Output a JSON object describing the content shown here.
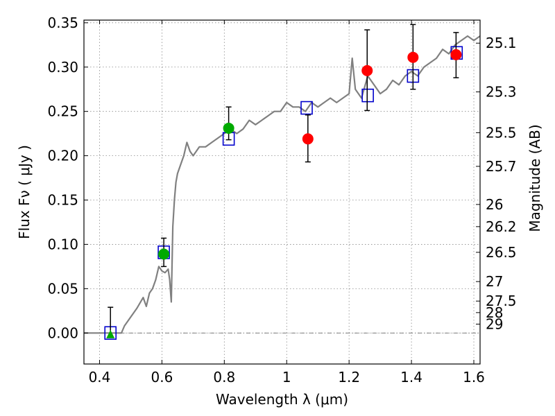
{
  "chart_data": {
    "type": "scatter",
    "xlabel": "Wavelength  λ (μm)",
    "ylabel": "Flux  Fν  ( μJy )",
    "ylabel_right": "Magnitude (AB)",
    "xlim": [
      0.35,
      1.62
    ],
    "ylim": [
      -0.035,
      0.353
    ],
    "grid": true,
    "x_ticks": [
      0.4,
      0.6,
      0.8,
      1.0,
      1.2,
      1.4,
      1.6
    ],
    "x_tick_labels": [
      "0.4",
      "0.6",
      "0.8",
      "1",
      "1.2",
      "1.4",
      "1.6"
    ],
    "y_ticks": [
      0.0,
      0.05,
      0.1,
      0.15,
      0.2,
      0.25,
      0.3,
      0.35
    ],
    "y_tick_labels": [
      "0.00",
      "0.05",
      "0.10",
      "0.15",
      "0.20",
      "0.25",
      "0.30",
      "0.35"
    ],
    "right_ticks": [
      {
        "label": "25.1",
        "flux": 0.327
      },
      {
        "label": "25.3",
        "flux": 0.272
      },
      {
        "label": "25.5",
        "flux": 0.226
      },
      {
        "label": "25.7",
        "flux": 0.188
      },
      {
        "label": "26",
        "flux": 0.145
      },
      {
        "label": "26.2",
        "flux": 0.12
      },
      {
        "label": "26.5",
        "flux": 0.091
      },
      {
        "label": "27",
        "flux": 0.058
      },
      {
        "label": "27.5",
        "flux": 0.036
      },
      {
        "label": "28",
        "flux": 0.023
      },
      {
        "label": "29",
        "flux": 0.01
      }
    ],
    "series": [
      {
        "name": "model spectrum",
        "kind": "line",
        "color": "#808080",
        "x": [
          0.35,
          0.4,
          0.45,
          0.47,
          0.48,
          0.5,
          0.52,
          0.54,
          0.55,
          0.56,
          0.57,
          0.58,
          0.59,
          0.6,
          0.61,
          0.62,
          0.625,
          0.63,
          0.635,
          0.64,
          0.645,
          0.65,
          0.66,
          0.67,
          0.68,
          0.69,
          0.7,
          0.72,
          0.74,
          0.76,
          0.78,
          0.8,
          0.82,
          0.84,
          0.86,
          0.88,
          0.9,
          0.92,
          0.94,
          0.96,
          0.98,
          1.0,
          1.02,
          1.04,
          1.06,
          1.08,
          1.1,
          1.12,
          1.14,
          1.16,
          1.18,
          1.2,
          1.21,
          1.22,
          1.24,
          1.26,
          1.28,
          1.3,
          1.32,
          1.34,
          1.36,
          1.38,
          1.4,
          1.42,
          1.44,
          1.46,
          1.48,
          1.5,
          1.52,
          1.54,
          1.56,
          1.58,
          1.6,
          1.62
        ],
        "y": [
          0.0,
          0.0,
          0.0,
          0.0,
          0.008,
          0.018,
          0.028,
          0.04,
          0.03,
          0.045,
          0.05,
          0.06,
          0.075,
          0.07,
          0.068,
          0.072,
          0.06,
          0.035,
          0.12,
          0.15,
          0.17,
          0.18,
          0.19,
          0.2,
          0.215,
          0.205,
          0.2,
          0.21,
          0.21,
          0.215,
          0.22,
          0.225,
          0.23,
          0.225,
          0.23,
          0.24,
          0.235,
          0.24,
          0.245,
          0.25,
          0.25,
          0.26,
          0.255,
          0.255,
          0.25,
          0.26,
          0.255,
          0.26,
          0.265,
          0.26,
          0.265,
          0.27,
          0.31,
          0.275,
          0.265,
          0.29,
          0.28,
          0.27,
          0.275,
          0.285,
          0.28,
          0.29,
          0.295,
          0.29,
          0.3,
          0.305,
          0.31,
          0.32,
          0.315,
          0.325,
          0.33,
          0.335,
          0.33,
          0.335
        ]
      },
      {
        "name": "model photometry",
        "kind": "open-square",
        "color": "#0000cc",
        "x": [
          0.435,
          0.606,
          0.814,
          1.064,
          1.26,
          1.405,
          1.545
        ],
        "y": [
          0.0,
          0.091,
          0.219,
          0.254,
          0.268,
          0.29,
          0.316
        ]
      },
      {
        "name": "HST photometry",
        "kind": "filled-circle",
        "color": "#00aa00",
        "x": [
          0.606,
          0.814
        ],
        "y": [
          0.089,
          0.231
        ],
        "yerr_low": [
          0.014,
          0.013
        ],
        "yerr_high": [
          0.018,
          0.024
        ]
      },
      {
        "name": "HST upper limit",
        "kind": "filled-triangle",
        "color": "#00aa00",
        "x": [
          0.435
        ],
        "y": [
          -0.002
        ],
        "yerr_low": [
          0.0
        ],
        "yerr_high": [
          0.031
        ]
      },
      {
        "name": "IR photometry",
        "kind": "filled-circle",
        "color": "#ff0000",
        "x": [
          1.068,
          1.258,
          1.405,
          1.543
        ],
        "y": [
          0.219,
          0.296,
          0.311,
          0.314
        ],
        "yerr_low": [
          0.026,
          0.045,
          0.036,
          0.026
        ],
        "yerr_high": [
          0.027,
          0.046,
          0.037,
          0.025
        ]
      }
    ]
  }
}
